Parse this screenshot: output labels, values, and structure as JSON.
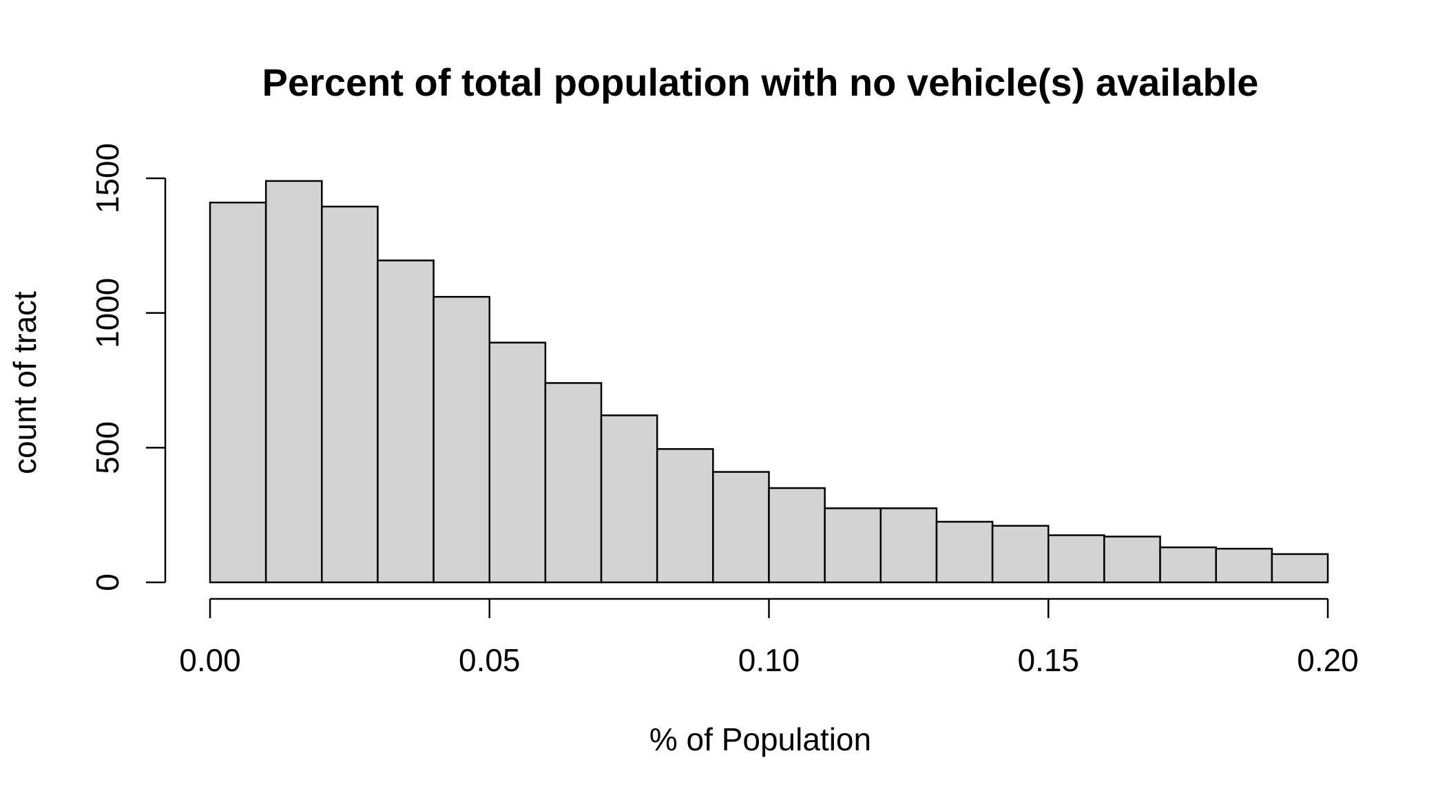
{
  "chart_data": {
    "type": "bar",
    "title": "Percent of total population with no vehicle(s) available",
    "xlabel": "% of Population",
    "ylabel": "count of tract",
    "xlim": [
      0,
      0.2
    ],
    "ylim": [
      0,
      1500
    ],
    "x_ticks": [
      "0.00",
      "0.05",
      "0.10",
      "0.15",
      "0.20"
    ],
    "y_ticks": [
      "0",
      "500",
      "1000",
      "1500"
    ],
    "bin_width": 0.01,
    "bins": [
      0.0,
      0.01,
      0.02,
      0.03,
      0.04,
      0.05,
      0.06,
      0.07,
      0.08,
      0.09,
      0.1,
      0.11,
      0.12,
      0.13,
      0.14,
      0.15,
      0.16,
      0.17,
      0.18,
      0.19
    ],
    "values": [
      1410,
      1490,
      1395,
      1195,
      1060,
      890,
      740,
      620,
      495,
      410,
      350,
      275,
      275,
      225,
      210,
      175,
      170,
      130,
      125,
      105
    ],
    "bar_color": "#d3d3d3",
    "grid": false,
    "legend": "none"
  }
}
